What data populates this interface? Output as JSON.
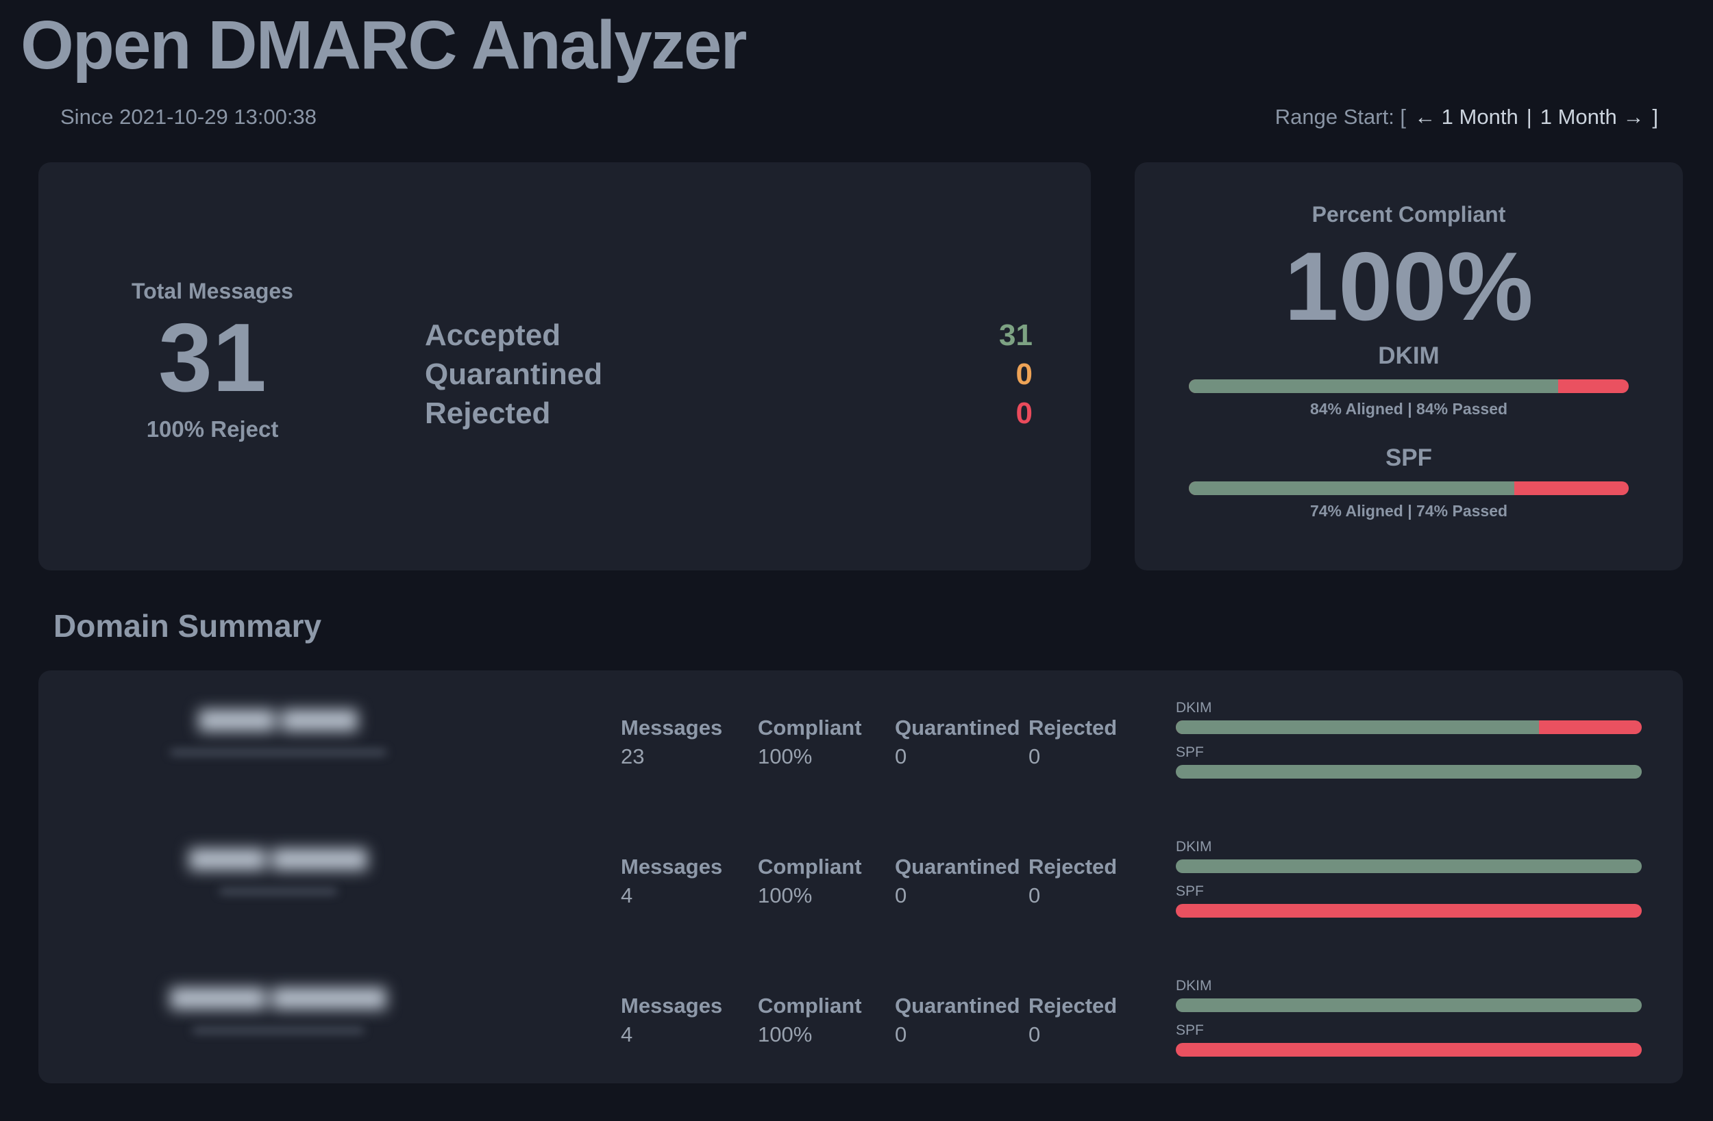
{
  "header": {
    "title": "Open DMARC Analyzer",
    "since": "Since 2021-10-29 13:00:38",
    "range": {
      "prefix": "Range Start: [",
      "prev_label": "← 1 Month",
      "separator": "|",
      "next_label": "1 Month →",
      "suffix": "]"
    }
  },
  "overview": {
    "total_label": "Total Messages",
    "total_value": "31",
    "total_caption": "100% Reject",
    "stats": [
      {
        "label": "Accepted",
        "value": "31",
        "color": "#7da283"
      },
      {
        "label": "Quarantined",
        "value": "0",
        "color": "#eea356"
      },
      {
        "label": "Rejected",
        "value": "0",
        "color": "#ea4b5c"
      }
    ]
  },
  "compliance": {
    "title": "Percent Compliant",
    "value": "100%",
    "meters": [
      {
        "label": "DKIM",
        "aligned_percent": 84,
        "passed_percent": 84,
        "caption": "84% Aligned | 84% Passed"
      },
      {
        "label": "SPF",
        "aligned_percent": 74,
        "passed_percent": 74,
        "caption": "74% Aligned | 74% Passed"
      }
    ]
  },
  "domain_summary": {
    "heading": "Domain Summary",
    "columns": [
      "Messages",
      "Compliant",
      "Quarantined",
      "Rejected"
    ],
    "bar_labels": [
      "DKIM",
      "SPF"
    ],
    "rows": [
      {
        "domain_blur": "▆▆▆▆ ▆▆▆▆",
        "subtext_blur": "▂▂▂▂▂▂▂▂▂▂▂▂▂▂▂▂▂▂▂▂▂▂▂▂",
        "values": [
          "23",
          "100%",
          "0",
          "0"
        ],
        "dkim_percent": 78,
        "spf_percent": 100
      },
      {
        "domain_blur": "▆▆▆▆ ▆▆▆▆▆",
        "subtext_blur": "▂▂▂▂▂▂▂▂▂▂▂▂▂",
        "values": [
          "4",
          "100%",
          "0",
          "0"
        ],
        "dkim_percent": 100,
        "spf_percent": 0
      },
      {
        "domain_blur": "▆▆▆▆▆ ▆▆▆▆▆▆",
        "subtext_blur": "▂▂▂▂▂▂▂▂▂▂▂▂▂▂▂▂▂▂▂",
        "values": [
          "4",
          "100%",
          "0",
          "0"
        ],
        "dkim_percent": 100,
        "spf_percent": 0
      }
    ]
  },
  "colors": {
    "background": "#11141d",
    "card": "#1d212c",
    "heading_text": "#8e99a9",
    "muted_text": "#8b96a6",
    "bright_text": "#ccd4de",
    "bar_green": "#72907f",
    "bar_red": "#ea5160"
  }
}
